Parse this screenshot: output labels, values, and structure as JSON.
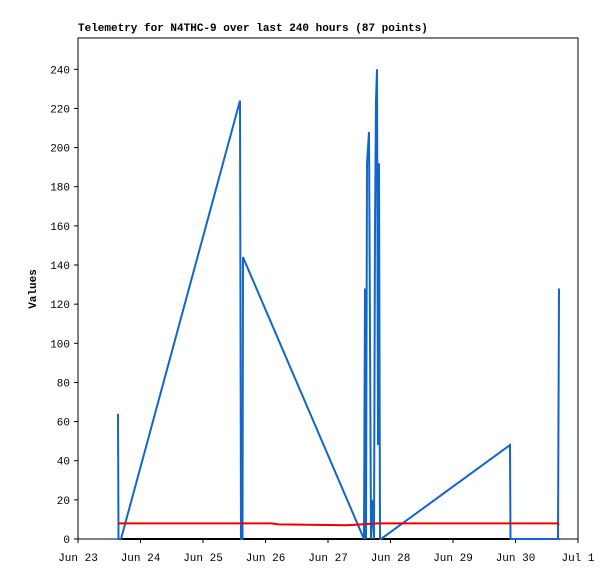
{
  "chart_data": {
    "type": "line",
    "title": "Telemetry for N4THC-9 over last 240 hours (87 points)",
    "y_label": "Values",
    "xlim": [
      0,
      8
    ],
    "xticks": [
      {
        "value": 0,
        "label": "Jun 23"
      },
      {
        "value": 1,
        "label": "Jun 24"
      },
      {
        "value": 2,
        "label": "Jun 25"
      },
      {
        "value": 3,
        "label": "Jun 26"
      },
      {
        "value": 4,
        "label": "Jun 27"
      },
      {
        "value": 5,
        "label": "Jun 28"
      },
      {
        "value": 6,
        "label": "Jun 29"
      },
      {
        "value": 7,
        "label": "Jun 30"
      },
      {
        "value": 8,
        "label": "Jul 1"
      }
    ],
    "ylim": [
      0,
      256
    ],
    "yticks": [
      0,
      20,
      40,
      60,
      80,
      100,
      120,
      140,
      160,
      180,
      200,
      220,
      240
    ],
    "series": [
      {
        "color": "#000000",
        "x": [
          0.64,
          7.7
        ],
        "values": [
          0,
          0
        ]
      },
      {
        "color": "#1166cc",
        "x": [
          0.64,
          0.648,
          0.688,
          2.592,
          2.608,
          2.632,
          2.64,
          4.576,
          4.592,
          4.608,
          4.624,
          4.656,
          4.672,
          4.688,
          4.704,
          4.736,
          4.752,
          4.768,
          4.784,
          4.8,
          4.816,
          4.832,
          4.848,
          6.912,
          6.92,
          7.68,
          7.696
        ],
        "values": [
          64,
          0,
          0,
          224,
          0,
          0,
          144,
          0,
          128,
          0,
          192,
          208,
          104,
          0,
          20,
          0,
          160,
          224,
          240,
          48,
          192,
          0,
          0,
          48,
          0,
          0,
          128
        ]
      },
      {
        "color": "#ee0000",
        "x": [
          0.64,
          3.1,
          3.2,
          4.3,
          4.8,
          7.68,
          7.69
        ],
        "values": [
          8,
          8,
          7.5,
          7,
          8,
          8,
          7
        ]
      }
    ]
  }
}
